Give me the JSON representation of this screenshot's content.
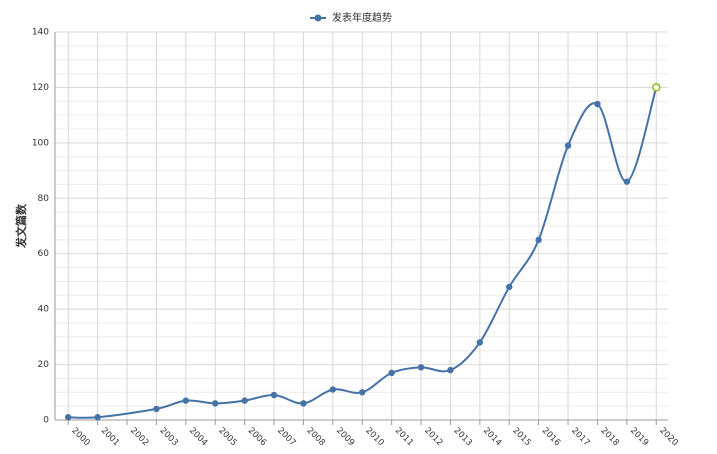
{
  "chart_data": {
    "type": "line",
    "y_label": "发文篇数",
    "series": [
      {
        "name": "发表年度趋势",
        "color": "#4572a7",
        "x": [
          2000,
          2001,
          2003,
          2004,
          2005,
          2006,
          2007,
          2008,
          2009,
          2010,
          2011,
          2012,
          2013,
          2014,
          2015,
          2016,
          2017,
          2018,
          2019,
          2020
        ],
        "values": [
          1,
          1,
          4,
          7,
          6,
          7,
          9,
          6,
          11,
          10,
          17,
          19,
          18,
          28,
          48,
          65,
          99,
          114,
          86,
          120
        ]
      }
    ],
    "xlim": [
      1999.55,
      2020.4
    ],
    "xticks": [
      2000,
      2001,
      2002,
      2003,
      2004,
      2005,
      2006,
      2007,
      2008,
      2009,
      2010,
      2011,
      2012,
      2013,
      2014,
      2015,
      2016,
      2017,
      2018,
      2019,
      2020
    ],
    "ylim": [
      0,
      140
    ],
    "yticks": [
      0,
      20,
      40,
      60,
      80,
      100,
      120,
      140
    ],
    "grid": true
  }
}
